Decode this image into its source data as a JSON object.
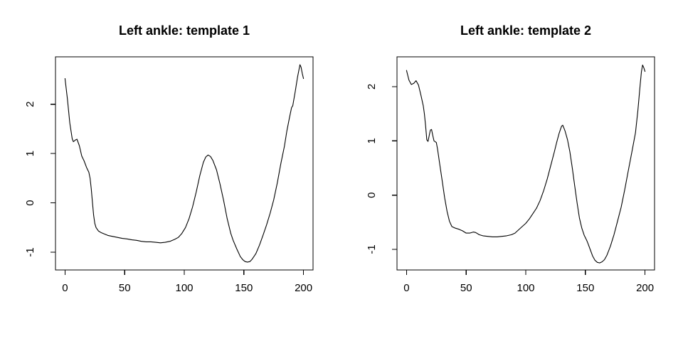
{
  "figure": {
    "background": "#ffffff",
    "line_color": "#000000",
    "axis_color": "#000000"
  },
  "chart_data": [
    {
      "type": "line",
      "title": "Left ankle: template 1",
      "xlabel": "",
      "ylabel": "",
      "grid": false,
      "legend": null,
      "xlim": [
        -8,
        208
      ],
      "ylim": [
        -1.36,
        2.96
      ],
      "x_ticks": [
        0,
        50,
        100,
        150,
        200
      ],
      "y_ticks": [
        -1,
        0,
        1,
        2
      ],
      "series": [
        {
          "name": "template 1",
          "x": [
            0,
            2,
            4,
            6,
            7,
            9,
            10,
            12,
            14,
            16,
            18,
            20,
            21,
            22,
            23,
            24,
            25,
            26,
            28,
            30,
            32,
            36,
            40,
            44,
            48,
            52,
            56,
            60,
            64,
            68,
            72,
            76,
            80,
            84,
            88,
            92,
            95,
            98,
            101,
            104,
            107,
            110,
            113,
            116,
            118,
            120,
            122,
            124,
            127,
            130,
            133,
            136,
            139,
            141,
            144,
            147,
            149,
            151,
            153,
            155,
            157,
            160,
            163,
            166,
            169,
            172,
            175,
            178,
            181,
            184,
            186,
            188,
            190,
            191,
            193,
            195,
            197,
            198,
            199,
            200
          ],
          "y": [
            2.52,
            2.1,
            1.62,
            1.3,
            1.24,
            1.28,
            1.29,
            1.16,
            0.95,
            0.85,
            0.72,
            0.62,
            0.5,
            0.28,
            0.0,
            -0.25,
            -0.42,
            -0.5,
            -0.57,
            -0.6,
            -0.62,
            -0.66,
            -0.68,
            -0.7,
            -0.72,
            -0.73,
            -0.75,
            -0.76,
            -0.78,
            -0.79,
            -0.79,
            -0.8,
            -0.81,
            -0.8,
            -0.78,
            -0.74,
            -0.7,
            -0.62,
            -0.5,
            -0.32,
            -0.08,
            0.22,
            0.55,
            0.82,
            0.93,
            0.97,
            0.94,
            0.86,
            0.67,
            0.38,
            0.05,
            -0.32,
            -0.62,
            -0.76,
            -0.93,
            -1.09,
            -1.15,
            -1.19,
            -1.2,
            -1.19,
            -1.14,
            -1.03,
            -0.86,
            -0.66,
            -0.45,
            -0.21,
            0.06,
            0.4,
            0.8,
            1.15,
            1.45,
            1.7,
            1.93,
            1.97,
            2.25,
            2.55,
            2.8,
            2.75,
            2.62,
            2.52
          ]
        }
      ]
    },
    {
      "type": "line",
      "title": "Left ankle: template 2",
      "xlabel": "",
      "ylabel": "",
      "grid": false,
      "legend": null,
      "xlim": [
        -8,
        208
      ],
      "ylim": [
        -1.38,
        2.55
      ],
      "x_ticks": [
        0,
        50,
        100,
        150,
        200
      ],
      "y_ticks": [
        -1,
        0,
        1,
        2
      ],
      "series": [
        {
          "name": "template 2",
          "x": [
            0,
            2,
            4,
            6,
            8,
            10,
            12,
            14,
            15,
            16,
            17,
            18,
            19,
            20,
            21,
            22,
            23,
            25,
            26,
            28,
            30,
            32,
            34,
            36,
            38,
            41,
            44,
            47,
            50,
            53,
            56,
            58,
            61,
            64,
            68,
            72,
            76,
            80,
            84,
            88,
            91,
            94,
            97,
            100,
            103,
            106,
            109,
            112,
            115,
            118,
            121,
            124,
            126,
            128,
            130,
            131,
            133,
            135,
            137,
            139,
            141,
            143,
            145,
            147,
            149,
            151,
            152,
            154,
            156,
            158,
            160,
            162,
            164,
            166,
            168,
            171,
            174,
            177,
            180,
            183,
            186,
            189,
            192,
            194,
            196,
            197,
            198,
            199,
            200
          ],
          "y": [
            2.3,
            2.12,
            2.04,
            2.06,
            2.11,
            2.03,
            1.85,
            1.65,
            1.5,
            1.28,
            1.02,
            0.99,
            1.1,
            1.2,
            1.21,
            1.1,
            1.0,
            0.97,
            0.85,
            0.55,
            0.25,
            -0.05,
            -0.3,
            -0.48,
            -0.58,
            -0.61,
            -0.63,
            -0.66,
            -0.7,
            -0.7,
            -0.68,
            -0.69,
            -0.73,
            -0.75,
            -0.76,
            -0.77,
            -0.77,
            -0.76,
            -0.75,
            -0.73,
            -0.7,
            -0.64,
            -0.58,
            -0.52,
            -0.44,
            -0.34,
            -0.24,
            -0.1,
            0.08,
            0.3,
            0.55,
            0.8,
            0.98,
            1.14,
            1.27,
            1.29,
            1.18,
            1.02,
            0.8,
            0.5,
            0.18,
            -0.14,
            -0.42,
            -0.61,
            -0.74,
            -0.83,
            -0.88,
            -1.0,
            -1.12,
            -1.2,
            -1.24,
            -1.25,
            -1.23,
            -1.19,
            -1.11,
            -0.94,
            -0.73,
            -0.48,
            -0.22,
            0.1,
            0.45,
            0.8,
            1.15,
            1.55,
            2.05,
            2.28,
            2.4,
            2.35,
            2.28
          ]
        }
      ]
    }
  ]
}
